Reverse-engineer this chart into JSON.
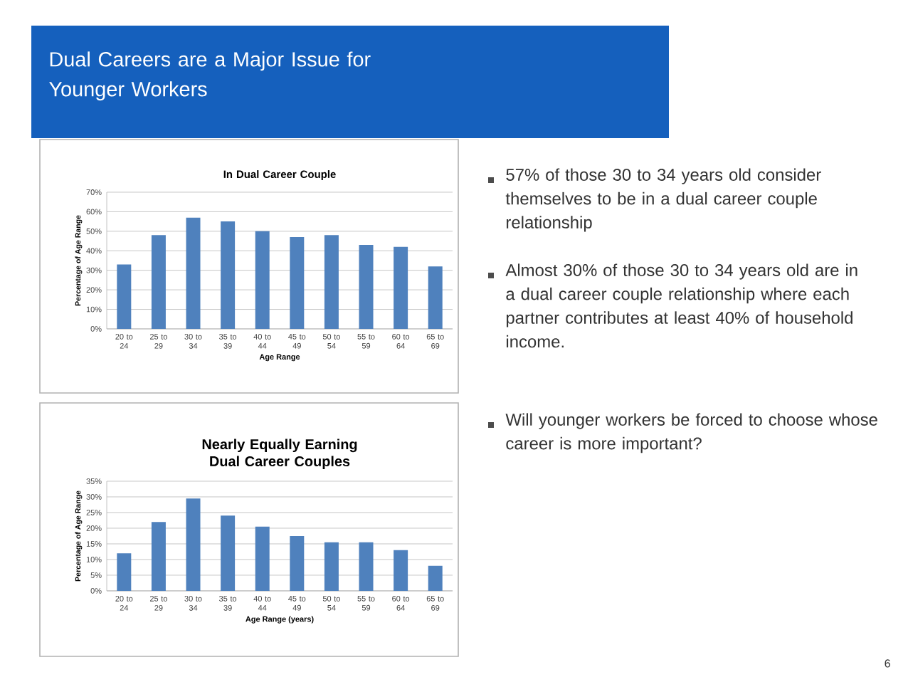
{
  "chart_data": [
    {
      "type": "bar",
      "title": "In Dual Career Couple",
      "xlabel": "Age Range",
      "ylabel": "Percentage of Age Range",
      "color": "#4f81bd",
      "grid": "y",
      "categories": [
        "20 to 24",
        "25 to 29",
        "30 to 34",
        "35 to 39",
        "40 to 44",
        "45 to 49",
        "50 to 54",
        "55 to 59",
        "60 to 64",
        "65 to 69"
      ],
      "values": [
        33,
        48,
        57,
        55,
        50,
        47,
        48,
        43,
        42,
        32
      ],
      "ylim": [
        0,
        70
      ],
      "yticks": [
        {
          "value": 0,
          "label": "0%"
        },
        {
          "value": 10,
          "label": "10%"
        },
        {
          "value": 20,
          "label": "20%"
        },
        {
          "value": 30,
          "label": "30%"
        },
        {
          "value": 40,
          "label": "40%"
        },
        {
          "value": 50,
          "label": "50%"
        },
        {
          "value": 60,
          "label": "60%"
        },
        {
          "value": 70,
          "label": "70%"
        }
      ]
    },
    {
      "type": "bar",
      "title": "Nearly Equally Earning Dual Career Couples",
      "xlabel": "Age Range (years)",
      "ylabel": "Percentage of Age Range",
      "color": "#4f81bd",
      "grid": "y",
      "categories": [
        "20 to 24",
        "25 to 29",
        "30 to 34",
        "35 to 39",
        "40 to 44",
        "45 to 49",
        "50 to 54",
        "55 to 59",
        "60 to 64",
        "65 to 69"
      ],
      "values": [
        12,
        22,
        29.5,
        24,
        20.5,
        17.5,
        15.5,
        15.5,
        13,
        8
      ],
      "ylim": [
        0,
        35
      ],
      "yticks": [
        {
          "value": 0,
          "label": "0%"
        },
        {
          "value": 5,
          "label": "5%"
        },
        {
          "value": 10,
          "label": "10%"
        },
        {
          "value": 15,
          "label": "15%"
        },
        {
          "value": 20,
          "label": "20%"
        },
        {
          "value": 25,
          "label": "25%"
        },
        {
          "value": 30,
          "label": "30%"
        },
        {
          "value": 35,
          "label": "35%"
        }
      ]
    },
    {
      "type": "other",
      "title": "Dual Careers are a Major Issue for Younger Workers",
      "annotations": [
        "57% of those 30 to 34 years old consider themselves to be in a dual career couple relationship",
        "Almost 30% of those 30 to 34 years old are in a dual career couple relationship where each partner contributes at least 40% of household income.",
        "Will younger workers be forced to choose whose career is more important?",
        "6"
      ]
    }
  ]
}
